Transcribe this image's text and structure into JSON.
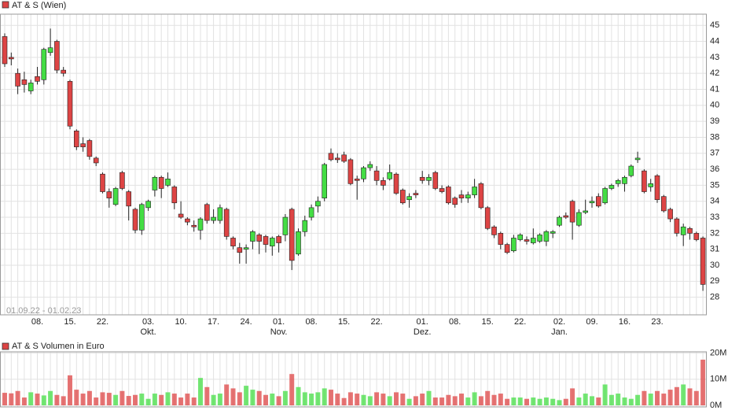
{
  "chart_data": [
    {
      "type": "candlestick",
      "title": "AT & S (Wien)",
      "range_label": "01.09.22 - 01.02.23",
      "categories": [
        null,
        null,
        null,
        null,
        null,
        "08.",
        null,
        null,
        null,
        null,
        "15.",
        null,
        null,
        null,
        null,
        "22.",
        null,
        null,
        null,
        null,
        null,
        null,
        "03.",
        null,
        null,
        null,
        null,
        "10.",
        null,
        null,
        null,
        null,
        "17.",
        null,
        null,
        null,
        null,
        "24.",
        null,
        null,
        null,
        null,
        "01.",
        null,
        null,
        null,
        null,
        "08.",
        null,
        null,
        null,
        null,
        "15.",
        null,
        null,
        null,
        null,
        "22.",
        null,
        null,
        null,
        null,
        null,
        null,
        "01.",
        null,
        null,
        null,
        null,
        "08.",
        null,
        null,
        null,
        null,
        "15.",
        null,
        null,
        null,
        null,
        "22.",
        null,
        null,
        null,
        null,
        null,
        "02.",
        null,
        null,
        null,
        null,
        "09.",
        null,
        null,
        null,
        null,
        "16.",
        null,
        null,
        null,
        null,
        "23.",
        null,
        null,
        null,
        null,
        null,
        null,
        null
      ],
      "month_labels": [
        null,
        null,
        null,
        null,
        null,
        null,
        null,
        null,
        null,
        null,
        null,
        null,
        null,
        null,
        null,
        null,
        null,
        null,
        null,
        null,
        null,
        null,
        "Okt.",
        null,
        null,
        null,
        null,
        null,
        null,
        null,
        null,
        null,
        null,
        null,
        null,
        null,
        null,
        null,
        null,
        null,
        null,
        null,
        "Nov.",
        null,
        null,
        null,
        null,
        null,
        null,
        null,
        null,
        null,
        null,
        null,
        null,
        null,
        null,
        null,
        null,
        null,
        null,
        null,
        null,
        null,
        "Dez.",
        null,
        null,
        null,
        null,
        null,
        null,
        null,
        null,
        null,
        null,
        null,
        null,
        null,
        null,
        null,
        null,
        null,
        null,
        null,
        null,
        "Jan.",
        null,
        null,
        null,
        null,
        null,
        null,
        null,
        null,
        null,
        null,
        null,
        null,
        null,
        null,
        null,
        null,
        null,
        null,
        null,
        null,
        null,
        null
      ],
      "open": [
        44.3,
        43.0,
        42.0,
        41.6,
        40.9,
        41.8,
        41.6,
        43.3,
        44.0,
        42.2,
        41.5,
        38.4,
        37.6,
        37.8,
        36.7,
        35.7,
        34.6,
        33.8,
        35.8,
        34.6,
        33.5,
        32.2,
        33.6,
        34.7,
        35.5,
        35.0,
        34.9,
        33.2,
        32.9,
        32.5,
        32.2,
        33.8,
        32.8,
        32.8,
        33.5,
        31.7,
        31.1,
        31.0,
        31.5,
        31.9,
        31.8,
        31.2,
        31.8,
        31.9,
        33.5,
        30.7,
        32.1,
        33.0,
        33.7,
        34.2,
        37.0,
        36.7,
        36.9,
        36.6,
        35.4,
        35.4,
        36.1,
        35.9,
        35.3,
        35.4,
        35.7,
        34.7,
        34.1,
        34.5,
        35.5,
        35.3,
        35.8,
        34.8,
        34.9,
        34.2,
        34.4,
        34.2,
        34.4,
        35.1,
        33.6,
        32.4,
        32.0,
        31.3,
        30.9,
        31.6,
        31.6,
        31.4,
        31.5,
        31.5,
        32.0,
        32.5,
        33.1,
        34.0,
        32.5,
        33.3,
        33.9,
        34.3,
        33.9,
        34.8,
        35.1,
        35.1,
        35.6,
        36.6,
        35.9,
        34.9,
        35.6,
        34.3,
        33.5,
        32.9,
        31.9,
        32.3,
        32.0,
        31.7
      ],
      "high": [
        44.5,
        43.3,
        42.3,
        42.1,
        41.6,
        42.4,
        43.6,
        44.8,
        44.1,
        42.4,
        41.6,
        38.5,
        38.0,
        37.9,
        36.8,
        35.8,
        34.8,
        34.9,
        35.9,
        34.7,
        33.6,
        33.9,
        34.1,
        35.6,
        35.6,
        35.8,
        35.0,
        34.0,
        33.0,
        32.8,
        33.0,
        33.9,
        33.5,
        33.8,
        33.6,
        31.8,
        31.4,
        31.3,
        32.2,
        32.0,
        31.9,
        31.8,
        31.9,
        33.2,
        33.6,
        32.3,
        33.1,
        33.8,
        34.3,
        36.4,
        37.3,
        37.0,
        37.1,
        36.7,
        35.6,
        36.2,
        36.5,
        36.2,
        35.5,
        36.3,
        35.8,
        34.8,
        34.5,
        34.7,
        35.9,
        35.7,
        35.9,
        35.0,
        35.0,
        34.3,
        34.7,
        34.6,
        35.4,
        35.2,
        33.7,
        32.5,
        32.1,
        31.4,
        31.9,
        32.0,
        31.8,
        32.3,
        32.0,
        32.2,
        32.2,
        33.1,
        33.3,
        34.1,
        33.5,
        34.1,
        34.3,
        34.5,
        34.9,
        35.1,
        35.4,
        35.6,
        36.3,
        37.1,
        36.0,
        35.4,
        35.7,
        34.4,
        33.6,
        33.0,
        32.6,
        32.4,
        32.1,
        31.8
      ],
      "low": [
        42.4,
        42.5,
        40.7,
        40.8,
        40.7,
        41.3,
        41.3,
        43.1,
        42.0,
        41.8,
        38.5,
        37.2,
        37.1,
        36.6,
        36.2,
        34.5,
        33.6,
        33.7,
        34.7,
        32.8,
        32.0,
        31.9,
        33.4,
        34.3,
        34.2,
        34.9,
        33.5,
        32.9,
        32.5,
        32.1,
        31.6,
        32.6,
        32.6,
        32.6,
        31.6,
        31.0,
        30.1,
        30.1,
        31.0,
        30.7,
        30.8,
        30.6,
        30.8,
        31.5,
        29.7,
        30.6,
        31.8,
        32.8,
        33.3,
        34.0,
        36.5,
        36.4,
        36.4,
        35.0,
        34.1,
        35.2,
        35.9,
        35.0,
        34.7,
        35.3,
        34.4,
        33.8,
        33.6,
        34.2,
        35.1,
        35.0,
        34.7,
        34.5,
        33.8,
        33.6,
        33.9,
        33.9,
        34.2,
        33.5,
        32.2,
        31.7,
        31.0,
        30.7,
        30.8,
        31.5,
        31.3,
        31.3,
        31.4,
        31.2,
        31.7,
        32.4,
        32.9,
        31.6,
        32.4,
        33.2,
        33.6,
        33.6,
        33.8,
        34.7,
        34.9,
        34.6,
        35.5,
        36.4,
        34.5,
        34.6,
        33.9,
        33.3,
        32.7,
        31.8,
        31.2,
        31.6,
        31.5,
        28.4
      ],
      "close": [
        42.6,
        42.9,
        41.2,
        41.3,
        41.4,
        41.5,
        43.5,
        43.6,
        42.2,
        42.0,
        38.7,
        37.4,
        37.4,
        36.8,
        36.4,
        34.6,
        34.2,
        34.8,
        34.8,
        33.7,
        32.2,
        33.8,
        34.0,
        35.5,
        34.8,
        35.4,
        33.9,
        33.0,
        32.7,
        32.4,
        32.9,
        32.8,
        33.0,
        33.6,
        31.8,
        31.2,
        30.8,
        31.1,
        32.1,
        31.5,
        31.3,
        31.7,
        31.4,
        33.0,
        30.3,
        32.1,
        32.8,
        33.6,
        34.0,
        36.3,
        36.6,
        36.6,
        36.5,
        35.1,
        35.3,
        36.1,
        36.3,
        35.3,
        35.0,
        35.8,
        34.5,
        33.9,
        34.3,
        34.4,
        35.3,
        35.5,
        34.8,
        34.6,
        33.9,
        33.8,
        34.2,
        34.4,
        34.9,
        33.6,
        32.3,
        31.9,
        31.3,
        30.8,
        31.7,
        31.9,
        31.5,
        31.7,
        31.9,
        32.1,
        32.1,
        33.0,
        33.0,
        32.7,
        33.3,
        33.4,
        34.0,
        33.7,
        34.8,
        35.0,
        35.3,
        35.5,
        36.2,
        36.7,
        34.6,
        35.1,
        34.1,
        33.4,
        32.9,
        32.0,
        32.4,
        32.0,
        31.6,
        28.8
      ],
      "ylim": [
        26.9,
        45.7
      ],
      "yticks": [
        28,
        29,
        30,
        31,
        32,
        33,
        34,
        35,
        36,
        37,
        38,
        39,
        40,
        41,
        42,
        43,
        44,
        45
      ],
      "up_color": "#44dd44",
      "down_color": "#dd4444",
      "grid": true
    },
    {
      "type": "bar",
      "title": "AT & S Volumen in Euro",
      "values": [
        4.8,
        4.6,
        5.5,
        3.0,
        5.0,
        4.5,
        3.8,
        5.5,
        4.0,
        3.5,
        11.5,
        6.0,
        4.5,
        5.5,
        3.0,
        5.0,
        4.8,
        4.0,
        5.5,
        3.6,
        4.0,
        4.5,
        2.5,
        4.5,
        4.0,
        5.0,
        4.5,
        3.0,
        4.5,
        3.0,
        10.5,
        7.0,
        4.0,
        4.5,
        8.0,
        6.5,
        5.0,
        7.5,
        6.0,
        5.5,
        4.0,
        4.5,
        3.5,
        5.5,
        12.0,
        7.0,
        5.0,
        4.5,
        5.0,
        6.5,
        6.0,
        4.5,
        2.8,
        5.0,
        4.5,
        4.0,
        3.5,
        5.0,
        4.5,
        3.5,
        5.0,
        4.5,
        2.5,
        3.5,
        4.5,
        5.5,
        3.0,
        3.0,
        4.0,
        3.5,
        4.5,
        3.0,
        5.0,
        3.5,
        5.5,
        4.0,
        4.5,
        2.5,
        3.0,
        3.0,
        2.5,
        3.0,
        2.5,
        3.0,
        2.5,
        2.0,
        2.5,
        6.5,
        3.0,
        4.5,
        3.5,
        3.0,
        8.0,
        4.0,
        4.5,
        3.0,
        2.5,
        4.0,
        5.5,
        4.5,
        5.5,
        4.5,
        6.0,
        7.0,
        8.0,
        6.5,
        5.5,
        17.5
      ],
      "ylim": [
        0,
        20.5
      ],
      "yticks": [
        {
          "value": 0,
          "label": "0M"
        },
        {
          "value": 10,
          "label": "10M"
        },
        {
          "value": 20,
          "label": "20M"
        }
      ],
      "grid": true
    }
  ]
}
